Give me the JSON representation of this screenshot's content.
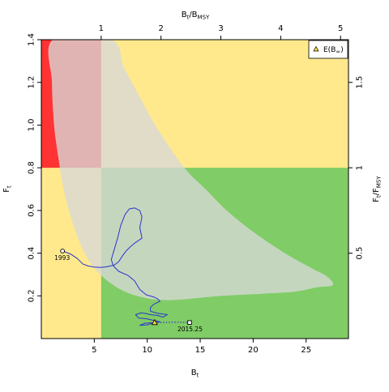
{
  "chart_data": {
    "type": "line",
    "xlabel": "B",
    "xlabel_sub": "t",
    "ylabel": "F",
    "ylabel_sub": "t",
    "top_label": "B",
    "top_label_sub": "t",
    "top_label_rest": "/B",
    "top_label_sub2": "MSY",
    "right_label": "F",
    "right_label_sub": "t",
    "right_label_rest": "/F",
    "right_label_sub2": "MSY",
    "xlim": [
      0,
      29
    ],
    "ylim": [
      0,
      1.4
    ],
    "bmsy": 5.65,
    "fmsy": 0.8,
    "x_ticks": [
      5,
      10,
      15,
      20,
      25
    ],
    "y_ticks": [
      "0.2",
      "0.4",
      "0.6",
      "0.8",
      "1.0",
      "1.2",
      "1.4"
    ],
    "y_tick_values": [
      0.2,
      0.4,
      0.6,
      0.8,
      1.0,
      1.2,
      1.4
    ],
    "top_ticks": [
      1,
      2,
      3,
      4,
      5
    ],
    "right_ticks": [
      "0.5",
      "1",
      "1.5"
    ],
    "right_tick_values": [
      0.5,
      1,
      1.5
    ],
    "zones": {
      "red": "#ff3333",
      "yellow": "#ffe98c",
      "green": "#80cc66",
      "ellipse": "#d9d9d9",
      "trajectory": "#2a35c9"
    },
    "legend": {
      "label": "E(B",
      "label_sub": "∞",
      "label_close": ")",
      "position": "top-right"
    },
    "start_label": "1993",
    "end_label": "2015.25",
    "equilibrium": [
      10.7,
      0.075
    ],
    "end_point": [
      14.0,
      0.075
    ],
    "projection": [
      [
        10.7,
        0.075
      ],
      [
        11.5,
        0.075
      ],
      [
        12.5,
        0.077
      ],
      [
        14.0,
        0.075
      ]
    ],
    "trajectory": [
      [
        2.0,
        0.41
      ],
      [
        2.8,
        0.395
      ],
      [
        3.4,
        0.375
      ],
      [
        3.9,
        0.35
      ],
      [
        4.4,
        0.34
      ],
      [
        5.0,
        0.335
      ],
      [
        5.6,
        0.333
      ],
      [
        6.2,
        0.336
      ],
      [
        6.9,
        0.345
      ],
      [
        7.3,
        0.36
      ],
      [
        7.7,
        0.39
      ],
      [
        8.0,
        0.41
      ],
      [
        8.4,
        0.43
      ],
      [
        8.9,
        0.45
      ],
      [
        9.5,
        0.47
      ],
      [
        9.3,
        0.52
      ],
      [
        9.5,
        0.57
      ],
      [
        9.3,
        0.6
      ],
      [
        8.8,
        0.612
      ],
      [
        8.3,
        0.607
      ],
      [
        7.9,
        0.58
      ],
      [
        7.5,
        0.53
      ],
      [
        7.2,
        0.47
      ],
      [
        6.9,
        0.42
      ],
      [
        6.6,
        0.37
      ],
      [
        6.8,
        0.34
      ],
      [
        7.3,
        0.315
      ],
      [
        8.2,
        0.295
      ],
      [
        8.8,
        0.27
      ],
      [
        9.3,
        0.23
      ],
      [
        9.9,
        0.205
      ],
      [
        10.6,
        0.195
      ],
      [
        11.0,
        0.185
      ],
      [
        11.2,
        0.175
      ],
      [
        10.6,
        0.16
      ],
      [
        10.3,
        0.145
      ],
      [
        10.3,
        0.128
      ],
      [
        11.0,
        0.118
      ],
      [
        11.9,
        0.112
      ],
      [
        11.5,
        0.1
      ],
      [
        11.0,
        0.108
      ],
      [
        10.3,
        0.112
      ],
      [
        9.8,
        0.118
      ],
      [
        9.4,
        0.12
      ],
      [
        8.9,
        0.112
      ],
      [
        9.2,
        0.096
      ],
      [
        9.9,
        0.093
      ],
      [
        10.7,
        0.084
      ],
      [
        11.2,
        0.078
      ],
      [
        10.6,
        0.074
      ],
      [
        9.8,
        0.072
      ],
      [
        9.3,
        0.062
      ],
      [
        10.0,
        0.064
      ],
      [
        10.7,
        0.075
      ]
    ],
    "uncertainty_region": [
      [
        1.1,
        1.4
      ],
      [
        1.0,
        1.2
      ],
      [
        1.2,
        1.0
      ],
      [
        1.6,
        0.85
      ],
      [
        2.1,
        0.7
      ],
      [
        2.9,
        0.55
      ],
      [
        3.9,
        0.42
      ],
      [
        5.0,
        0.33
      ],
      [
        6.8,
        0.25
      ],
      [
        9.0,
        0.2
      ],
      [
        12.0,
        0.18
      ],
      [
        17.0,
        0.2
      ],
      [
        21.0,
        0.21
      ],
      [
        24.0,
        0.22
      ],
      [
        26.0,
        0.24
      ],
      [
        27.5,
        0.25
      ],
      [
        27.0,
        0.29
      ],
      [
        25.5,
        0.33
      ],
      [
        23.0,
        0.4
      ],
      [
        20.0,
        0.5
      ],
      [
        17.5,
        0.6
      ],
      [
        15.5,
        0.7
      ],
      [
        13.5,
        0.8
      ],
      [
        11.0,
        0.98
      ],
      [
        9.2,
        1.14
      ],
      [
        7.8,
        1.27
      ],
      [
        6.6,
        1.4
      ]
    ]
  }
}
